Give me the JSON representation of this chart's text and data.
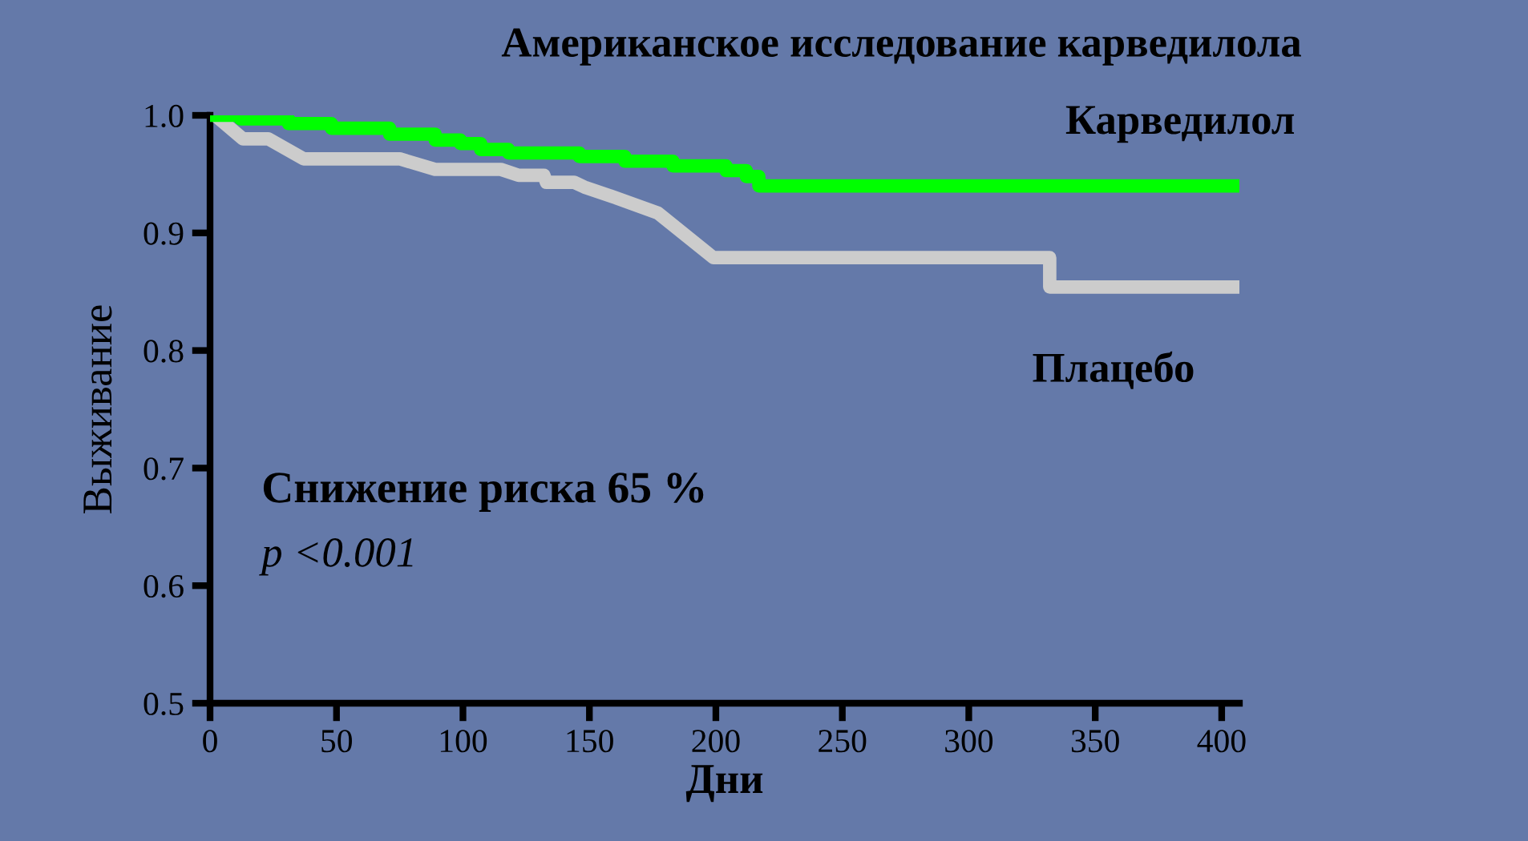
{
  "chart_data": {
    "type": "line",
    "title": "Американское исследование карведилола",
    "xlabel": "Дни",
    "ylabel": "Выживание",
    "xlim": [
      0,
      407
    ],
    "xticks": [
      0,
      50,
      100,
      150,
      200,
      250,
      300,
      350,
      400
    ],
    "ylim": [
      0.5,
      1.0
    ],
    "yticks": [
      {
        "value": 0.5,
        "label": "0.5"
      },
      {
        "value": 0.6,
        "label": "0.6"
      },
      {
        "value": 0.7,
        "label": "0.7"
      },
      {
        "value": 0.8,
        "label": "0.8"
      },
      {
        "value": 0.9,
        "label": "0.9"
      },
      {
        "value": 1.0,
        "label": "1.0"
      }
    ],
    "grid": false,
    "legend": false,
    "annotations": [
      "Снижение риска 65 %",
      "p <0.001"
    ],
    "series": [
      {
        "name": "Карведилол",
        "color": "#00ff00",
        "type": "step",
        "x": [
          0,
          12,
          31,
          48,
          71,
          89,
          99,
          107,
          118,
          146,
          164,
          183,
          204,
          212,
          217,
          407
        ],
        "values": [
          1.0,
          0.997,
          0.993,
          0.989,
          0.984,
          0.979,
          0.976,
          0.971,
          0.968,
          0.965,
          0.961,
          0.957,
          0.953,
          0.948,
          0.94,
          0.94
        ]
      },
      {
        "name": "Плацебо",
        "color": "#cccccc",
        "x": [
          2,
          13,
          23,
          37,
          75,
          89,
          115,
          122,
          132,
          133,
          144,
          148,
          159,
          177,
          199,
          332,
          332,
          407
        ],
        "values": [
          1.0,
          0.98,
          0.98,
          0.963,
          0.963,
          0.954,
          0.954,
          0.949,
          0.949,
          0.943,
          0.943,
          0.939,
          0.931,
          0.917,
          0.879,
          0.879,
          0.854,
          0.854
        ]
      }
    ]
  }
}
